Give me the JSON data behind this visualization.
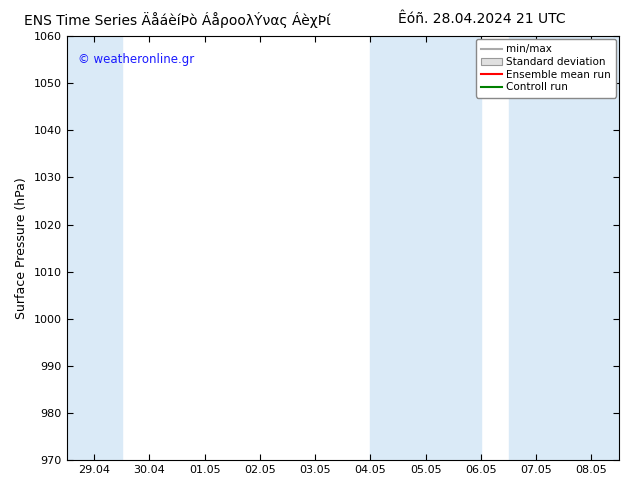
{
  "title_left": "ENS Time Series ÄåáèίÐò ÁåροολÝνας ÁèχÞί",
  "title_right": "Êóñ. 28.04.2024 21 UTC",
  "ylabel": "Surface Pressure (hPa)",
  "ylim": [
    970,
    1060
  ],
  "yticks": [
    970,
    980,
    990,
    1000,
    1010,
    1020,
    1030,
    1040,
    1050,
    1060
  ],
  "xtick_labels": [
    "29.04",
    "30.04",
    "01.05",
    "02.05",
    "03.05",
    "04.05",
    "05.05",
    "06.05",
    "07.05",
    "08.05"
  ],
  "shaded_bands": [
    {
      "xstart": -0.5,
      "xend": 0.5
    },
    {
      "xstart": 5.0,
      "xend": 6.0
    },
    {
      "xstart": 6.0,
      "xend": 7.0
    },
    {
      "xstart": 7.5,
      "xend": 8.5
    },
    {
      "xstart": 8.5,
      "xend": 9.5
    }
  ],
  "band_color": "#daeaf7",
  "watermark": "© weatheronline.gr",
  "legend_labels": [
    "min/max",
    "Standard deviation",
    "Ensemble mean run",
    "Controll run"
  ],
  "legend_colors": [
    "#aaaaaa",
    "#cccccc",
    "#ff0000",
    "#008000"
  ],
  "background_color": "#ffffff",
  "plot_bg_color": "#ffffff",
  "title_fontsize": 10,
  "tick_fontsize": 8,
  "ylabel_fontsize": 9
}
